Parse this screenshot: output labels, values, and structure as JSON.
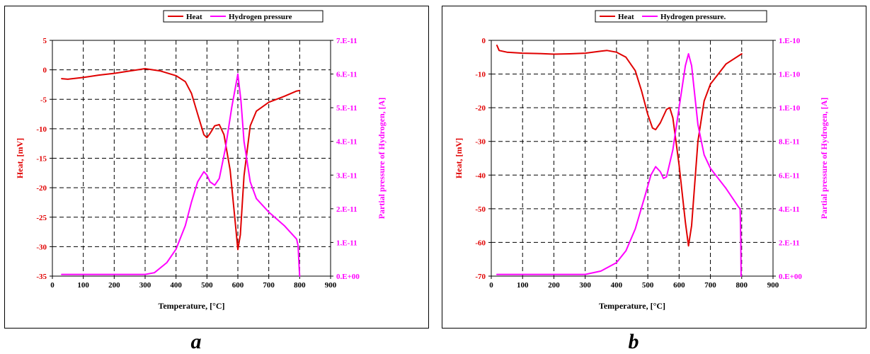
{
  "chart_data": [
    {
      "type": "line",
      "panel_label": "a",
      "xlabel": "Temperature, [°C]",
      "ylabel_left": "Heat, [mV]",
      "ylabel_right": "Partial pressure of Hydrogen, [A]",
      "xlim": [
        0,
        900
      ],
      "x_ticks": [
        "0",
        "100",
        "200",
        "300",
        "400",
        "500",
        "600",
        "700",
        "800",
        "900"
      ],
      "ylim_left": [
        -35,
        5
      ],
      "y_ticks_left": [
        "5",
        "0",
        "-5",
        "-10",
        "-15",
        "-20",
        "-25",
        "-30",
        "-35"
      ],
      "ylim_right": [
        0,
        7e-11
      ],
      "y_ticks_right": [
        "7.E-11",
        "6.E-11",
        "5.E-11",
        "4.E-11",
        "3.E-11",
        "2.E-11",
        "1.E-11",
        "0.E+00"
      ],
      "grid": true,
      "legend_position": "top-center",
      "series": [
        {
          "name": "Heat",
          "axis": "left",
          "color": "#e00000",
          "points": [
            [
              30,
              -1.5
            ],
            [
              50,
              -1.6
            ],
            [
              100,
              -1.3
            ],
            [
              150,
              -0.9
            ],
            [
              200,
              -0.6
            ],
            [
              250,
              -0.2
            ],
            [
              300,
              0.2
            ],
            [
              350,
              -0.2
            ],
            [
              400,
              -1.0
            ],
            [
              430,
              -2.0
            ],
            [
              450,
              -4.0
            ],
            [
              470,
              -7.5
            ],
            [
              490,
              -11.0
            ],
            [
              500,
              -11.5
            ],
            [
              510,
              -10.8
            ],
            [
              525,
              -9.5
            ],
            [
              540,
              -9.3
            ],
            [
              555,
              -11.0
            ],
            [
              575,
              -17.0
            ],
            [
              590,
              -25.0
            ],
            [
              600,
              -30.5
            ],
            [
              608,
              -28.0
            ],
            [
              620,
              -18.0
            ],
            [
              640,
              -9.5
            ],
            [
              660,
              -7.0
            ],
            [
              700,
              -5.5
            ],
            [
              750,
              -4.5
            ],
            [
              790,
              -3.6
            ],
            [
              800,
              -3.5
            ]
          ]
        },
        {
          "name": "Hydrogen pressure",
          "axis": "right",
          "color": "#ff00ff",
          "points": [
            [
              30,
              5e-13
            ],
            [
              100,
              5e-13
            ],
            [
              200,
              5e-13
            ],
            [
              300,
              5e-13
            ],
            [
              330,
              1e-12
            ],
            [
              370,
              4e-12
            ],
            [
              400,
              8e-12
            ],
            [
              430,
              1.5e-11
            ],
            [
              450,
              2.2e-11
            ],
            [
              470,
              2.8e-11
            ],
            [
              490,
              3.1e-11
            ],
            [
              500,
              3e-11
            ],
            [
              510,
              2.8e-11
            ],
            [
              525,
              2.7e-11
            ],
            [
              540,
              2.9e-11
            ],
            [
              560,
              3.8e-11
            ],
            [
              580,
              5e-11
            ],
            [
              600,
              6e-11
            ],
            [
              610,
              5.2e-11
            ],
            [
              620,
              4e-11
            ],
            [
              640,
              2.8e-11
            ],
            [
              660,
              2.3e-11
            ],
            [
              700,
              1.9e-11
            ],
            [
              750,
              1.5e-11
            ],
            [
              790,
              1.1e-11
            ],
            [
              795,
              9e-12
            ],
            [
              798,
              3e-12
            ],
            [
              800,
              0.0
            ]
          ]
        }
      ]
    },
    {
      "type": "line",
      "panel_label": "b",
      "xlabel": "Temperature, [°C]",
      "ylabel_left": "Heat, [mV]",
      "ylabel_right": "Partial pressure of Hydrogen, [A]",
      "xlim": [
        0,
        900
      ],
      "x_ticks": [
        "0",
        "100",
        "200",
        "300",
        "400",
        "500",
        "600",
        "700",
        "800",
        "900"
      ],
      "ylim_left": [
        -70,
        0
      ],
      "y_ticks_left": [
        "0",
        "-10",
        "-20",
        "-30",
        "-40",
        "-50",
        "-60",
        "-70"
      ],
      "ylim_right": [
        0,
        1.4e-10
      ],
      "y_ticks_right": [
        "1.E-10",
        "1.E-10",
        "1.E-10",
        "8.E-11",
        "6.E-11",
        "4.E-11",
        "2.E-11",
        "0.E+00"
      ],
      "grid": true,
      "legend_position": "top-center",
      "series": [
        {
          "name": "Heat",
          "axis": "left",
          "color": "#e00000",
          "points": [
            [
              18,
              -1.5
            ],
            [
              25,
              -3.0
            ],
            [
              50,
              -3.5
            ],
            [
              100,
              -3.8
            ],
            [
              150,
              -3.9
            ],
            [
              200,
              -4.1
            ],
            [
              250,
              -4.0
            ],
            [
              300,
              -3.8
            ],
            [
              350,
              -3.2
            ],
            [
              370,
              -3.0
            ],
            [
              400,
              -3.5
            ],
            [
              430,
              -5.0
            ],
            [
              460,
              -9.0
            ],
            [
              480,
              -15.0
            ],
            [
              500,
              -22.0
            ],
            [
              515,
              -26.0
            ],
            [
              525,
              -26.5
            ],
            [
              540,
              -24.5
            ],
            [
              560,
              -20.5
            ],
            [
              570,
              -20.0
            ],
            [
              580,
              -23.0
            ],
            [
              600,
              -37.0
            ],
            [
              620,
              -54.0
            ],
            [
              630,
              -61.0
            ],
            [
              640,
              -55.0
            ],
            [
              660,
              -30.0
            ],
            [
              680,
              -18.0
            ],
            [
              700,
              -13.0
            ],
            [
              750,
              -7.0
            ],
            [
              800,
              -4.0
            ]
          ]
        },
        {
          "name": "Hydrogen pressure.",
          "axis": "right",
          "color": "#ff00ff",
          "points": [
            [
              18,
              1e-12
            ],
            [
              100,
              1e-12
            ],
            [
              200,
              1e-12
            ],
            [
              300,
              1e-12
            ],
            [
              350,
              3e-12
            ],
            [
              400,
              8e-12
            ],
            [
              430,
              1.5e-11
            ],
            [
              460,
              2.8e-11
            ],
            [
              490,
              4.7e-11
            ],
            [
              510,
              6e-11
            ],
            [
              525,
              6.5e-11
            ],
            [
              540,
              6.2e-11
            ],
            [
              550,
              5.8e-11
            ],
            [
              560,
              5.9e-11
            ],
            [
              580,
              7.5e-11
            ],
            [
              600,
              1e-10
            ],
            [
              620,
              1.25e-10
            ],
            [
              630,
              1.32e-10
            ],
            [
              640,
              1.25e-10
            ],
            [
              660,
              9e-11
            ],
            [
              680,
              7.2e-11
            ],
            [
              700,
              6.4e-11
            ],
            [
              750,
              5.2e-11
            ],
            [
              790,
              4.1e-11
            ],
            [
              795,
              4e-11
            ],
            [
              797,
              2e-11
            ],
            [
              798,
              0.0
            ]
          ]
        }
      ]
    }
  ]
}
